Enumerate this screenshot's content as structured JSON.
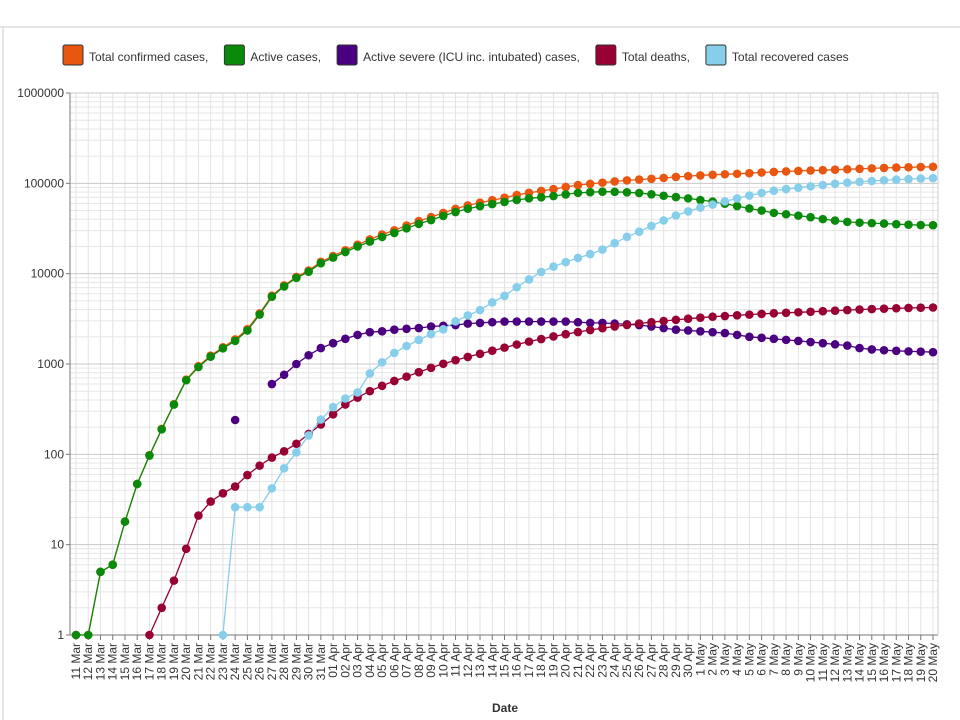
{
  "chart_data": {
    "type": "line",
    "log_scale": true,
    "grid": true,
    "legend": "top",
    "x_label": "Date",
    "categories": [
      "11 Mar",
      "12 Mar",
      "13 Mar",
      "14 Mar",
      "15 Mar",
      "16 Mar",
      "17 Mar",
      "18 Mar",
      "19 Mar",
      "20 Mar",
      "21 Mar",
      "22 Mar",
      "23 Mar",
      "24 Mar",
      "25 Mar",
      "26 Mar",
      "27 Mar",
      "28 Mar",
      "29 Mar",
      "30 Mar",
      "31 Mar",
      "01 Apr",
      "02 Apr",
      "03 Apr",
      "04 Apr",
      "05 Apr",
      "06 Apr",
      "07 Apr",
      "08 Apr",
      "09 Apr",
      "10 Apr",
      "11 Apr",
      "12 Apr",
      "13 Apr",
      "14 Apr",
      "15 Apr",
      "16 Apr",
      "17 Apr",
      "18 Apr",
      "19 Apr",
      "20 Apr",
      "21 Apr",
      "22 Apr",
      "23 Apr",
      "24 Apr",
      "25 Apr",
      "26 Apr",
      "27 Apr",
      "28 Apr",
      "29 Apr",
      "30 Apr",
      "1 May",
      "2 May",
      "3 May",
      "4 May",
      "5 May",
      "6 May",
      "7 May",
      "8 May",
      "9 May",
      "10 May",
      "11 May",
      "12 May",
      "13 May",
      "14 May",
      "15 May",
      "16 May",
      "17 May",
      "18 May",
      "19 May",
      "20 May"
    ],
    "ylim": [
      1,
      1000000
    ],
    "yticks": [
      1,
      10,
      100,
      1000,
      10000,
      100000,
      1000000
    ],
    "series": [
      {
        "name": "Total confirmed cases,",
        "color": "#e8560f",
        "values": [
          1,
          1,
          5,
          6,
          18,
          47,
          98,
          191,
          359,
          670,
          947,
          1236,
          1529,
          1872,
          2433,
          3629,
          5698,
          7402,
          9217,
          10827,
          13531,
          15679,
          18135,
          20921,
          23934,
          27069,
          30217,
          34109,
          38226,
          42282,
          47029,
          52167,
          56956,
          61049,
          65111,
          69392,
          74193,
          78546,
          82329,
          86306,
          90980,
          95591,
          98674,
          101790,
          104912,
          107773,
          110130,
          112261,
          114653,
          117589,
          120204,
          122392,
          124375,
          126045,
          127659,
          129491,
          131744,
          133721,
          135569,
          137115,
          138657,
          139771,
          141475,
          143114,
          144749,
          146457,
          148067,
          149435,
          150593,
          151615,
          152587
        ]
      },
      {
        "name": "Active cases,",
        "color": "#0a8a0a",
        "values": [
          1,
          1,
          5,
          6,
          18,
          47,
          97,
          189,
          355,
          661,
          926,
          1206,
          1491,
          1802,
          2348,
          3528,
          5564,
          7224,
          8981,
          10497,
          13074,
          15069,
          17364,
          20012,
          22647,
          25453,
          28242,
          31802,
          35568,
          39232,
          43600,
          48101,
          52312,
          55796,
          58909,
          62200,
          65461,
          68146,
          69986,
          72313,
          75410,
          78414,
          79821,
          80808,
          80575,
          79485,
          78185,
          75570,
          72852,
          70468,
          68144,
          65326,
          62780,
          59497,
          56032,
          52686,
          49958,
          47096,
          45484,
          43896,
          42180,
          40150,
          38692,
          37447,
          36712,
          36269,
          35834,
          35333,
          34845,
          34521,
          34378
        ]
      },
      {
        "name": "Active severe (ICU inc. intubated) cases,",
        "color": "#4b0082",
        "values": [
          null,
          null,
          null,
          null,
          null,
          null,
          null,
          null,
          null,
          null,
          null,
          null,
          null,
          240,
          null,
          null,
          600,
          760,
          1000,
          1250,
          1500,
          1700,
          1900,
          2100,
          2250,
          2300,
          2400,
          2450,
          2500,
          2600,
          2650,
          2700,
          2800,
          2850,
          2900,
          2950,
          2950,
          2950,
          2950,
          2950,
          2950,
          2900,
          2850,
          2850,
          2800,
          2750,
          2700,
          2600,
          2500,
          2400,
          2350,
          2300,
          2250,
          2200,
          2100,
          2000,
          1950,
          1900,
          1850,
          1800,
          1750,
          1700,
          1650,
          1600,
          1500,
          1450,
          1420,
          1400,
          1380,
          1370,
          1350
        ]
      },
      {
        "name": "Total deaths,",
        "color": "#990033",
        "values": [
          null,
          null,
          null,
          null,
          null,
          null,
          1,
          2,
          4,
          9,
          21,
          30,
          37,
          44,
          59,
          75,
          92,
          108,
          131,
          168,
          214,
          277,
          356,
          425,
          501,
          574,
          649,
          725,
          812,
          908,
          1006,
          1101,
          1198,
          1296,
          1403,
          1518,
          1643,
          1769,
          1890,
          2017,
          2140,
          2259,
          2376,
          2491,
          2600,
          2706,
          2805,
          2900,
          2992,
          3081,
          3174,
          3258,
          3336,
          3397,
          3461,
          3520,
          3584,
          3641,
          3689,
          3739,
          3786,
          3841,
          3894,
          3952,
          4007,
          4055,
          4096,
          4140,
          4171,
          4199,
          4222
        ]
      },
      {
        "name": "Total recovered cases",
        "color": "#87ceeb",
        "values": [
          null,
          null,
          null,
          null,
          null,
          null,
          null,
          null,
          null,
          null,
          null,
          null,
          1,
          26,
          26,
          26,
          42,
          70,
          105,
          162,
          243,
          333,
          415,
          484,
          786,
          1042,
          1326,
          1582,
          1846,
          2142,
          2423,
          2965,
          3446,
          3957,
          4799,
          5674,
          7089,
          8631,
          10453,
          11976,
          13430,
          14918,
          16477,
          18491,
          21737,
          25582,
          29140,
          33791,
          38809,
          44040,
          48886,
          53808,
          58259,
          63151,
          68166,
          73285,
          78202,
          82984,
          86396,
          89480,
          92691,
          95780,
          98889,
          101715,
          104030,
          106133,
          108137,
          109962,
          111577,
          112895,
          113987
        ]
      }
    ]
  }
}
